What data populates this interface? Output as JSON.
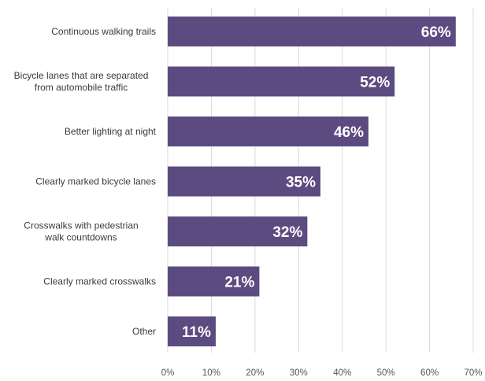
{
  "chart_data": {
    "type": "bar",
    "orientation": "horizontal",
    "categories": [
      [
        "Continuous walking trails"
      ],
      [
        "Bicycle lanes that are separated",
        "from automobile traffic"
      ],
      [
        "Better lighting at night"
      ],
      [
        "Clearly marked bicycle lanes"
      ],
      [
        "Crosswalks with pedestrian",
        "walk countdowns"
      ],
      [
        "Clearly marked crosswalks"
      ],
      [
        "Other"
      ]
    ],
    "values": [
      66,
      52,
      46,
      35,
      32,
      21,
      11
    ],
    "value_labels": [
      "66%",
      "52%",
      "46%",
      "35%",
      "32%",
      "21%",
      "11%"
    ],
    "xlim": [
      0,
      70
    ],
    "ticks": [
      0,
      10,
      20,
      30,
      40,
      50,
      60,
      70
    ],
    "tick_labels": [
      "0%",
      "10%",
      "20%",
      "30%",
      "40%",
      "50%",
      "60%",
      "70%"
    ],
    "grid": true,
    "title": "",
    "xlabel": "",
    "ylabel": "",
    "colors": {
      "bar": "#5c4b80",
      "grid": "#d9d9d9",
      "label": "#3a3a3a"
    }
  }
}
